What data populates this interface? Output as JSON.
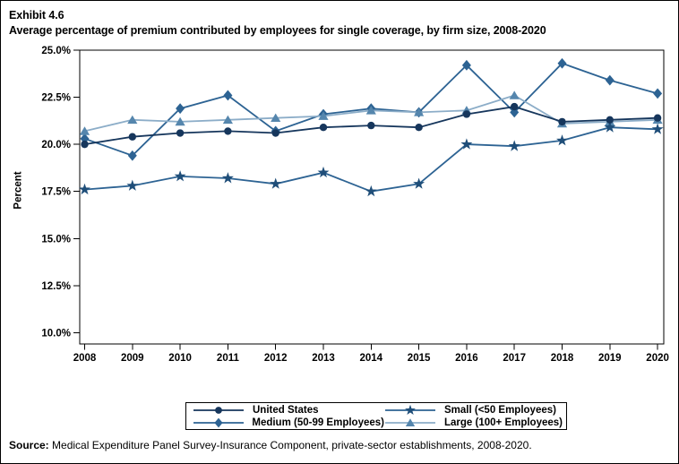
{
  "page": {
    "background": "#ffffff",
    "border_color": "#000000"
  },
  "header": {
    "exhibit_label": "Exhibit 4.6",
    "title": "Average percentage of premium contributed by employees for single coverage, by firm size, 2008-2020"
  },
  "chart_data": {
    "type": "line",
    "title": "Average percentage of premium contributed by employees for single coverage, by firm size, 2008-2020",
    "xlabel": "",
    "ylabel": "Percent",
    "x": [
      2008,
      2009,
      2010,
      2011,
      2012,
      2013,
      2014,
      2015,
      2016,
      2017,
      2018,
      2019,
      2020
    ],
    "yticks": [
      10.0,
      12.5,
      15.0,
      17.5,
      20.0,
      22.5,
      25.0
    ],
    "ylim": [
      9.4,
      25.0
    ],
    "ytick_suffix": "%",
    "grid": false,
    "legend_position": "bottom-box",
    "series": [
      {
        "name": "United States",
        "marker": "circle",
        "marker_color": "#16365c",
        "line_color": "#16365c",
        "values": [
          20.0,
          20.4,
          20.6,
          20.7,
          20.6,
          20.9,
          21.0,
          20.9,
          21.6,
          22.0,
          21.2,
          21.3,
          21.4
        ]
      },
      {
        "name": "Small (<50 Employees)",
        "marker": "star",
        "marker_color": "#1f4e79",
        "line_color": "#2d6393",
        "values": [
          17.6,
          17.8,
          18.3,
          18.2,
          17.9,
          18.5,
          17.5,
          17.9,
          20.0,
          19.9,
          20.2,
          20.9,
          20.8
        ]
      },
      {
        "name": "Medium (50-99 Employees)",
        "marker": "diamond",
        "marker_color": "#2d6393",
        "line_color": "#2d6393",
        "values": [
          20.3,
          19.4,
          21.9,
          22.6,
          20.7,
          21.6,
          21.9,
          21.7,
          24.2,
          21.7,
          24.3,
          23.4,
          22.7
        ]
      },
      {
        "name": "Large (100+ Employees)",
        "marker": "triangle",
        "marker_color": "#5586ad",
        "line_color": "#8cadc8",
        "values": [
          20.7,
          21.3,
          21.2,
          21.3,
          21.4,
          21.5,
          21.8,
          21.7,
          21.8,
          22.6,
          21.1,
          21.2,
          21.3
        ]
      }
    ]
  },
  "source": {
    "label": "Source:",
    "text": "Medical Expenditure Panel Survey-Insurance Component, private-sector establishments, 2008-2020."
  }
}
